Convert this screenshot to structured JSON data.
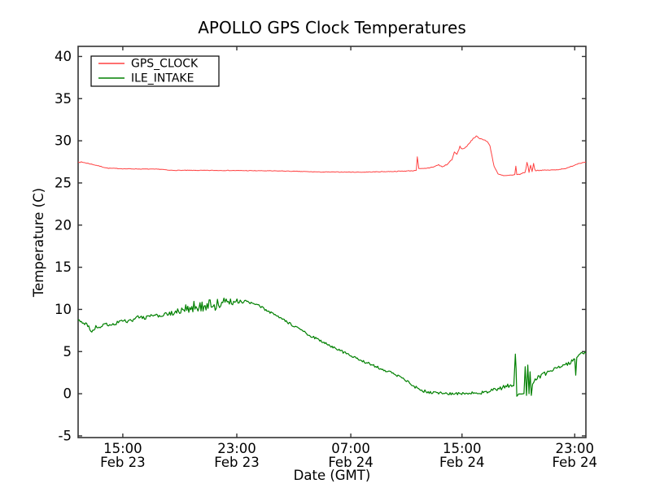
{
  "figure": {
    "title": "APOLLO GPS Clock Temperatures",
    "xlabel": "Date (GMT)",
    "ylabel": "Temperature (C)"
  },
  "chart_data": {
    "type": "line",
    "title": "APOLLO GPS Clock Temperatures",
    "xlabel": "Date (GMT)",
    "ylabel": "Temperature (C)",
    "grid": false,
    "ylim": [
      -5.2,
      41.2
    ],
    "yticks": [
      40,
      35,
      30,
      25,
      20,
      15,
      10,
      5,
      0,
      -5
    ],
    "xticks": [
      {
        "f": 0.088,
        "time": "15:00",
        "date": "Feb 23"
      },
      {
        "f": 0.3125,
        "time": "23:00",
        "date": "Feb 23"
      },
      {
        "f": 0.537,
        "time": "07:00",
        "date": "Feb 24"
      },
      {
        "f": 0.756,
        "time": "15:00",
        "date": "Feb 24"
      },
      {
        "f": 0.978,
        "time": "23:00",
        "date": "Feb 24"
      }
    ],
    "legend": {
      "position": "upper-left",
      "entries": [
        {
          "label": "GPS_CLOCK",
          "color": "#ff4040"
        },
        {
          "label": "ILE_INTAKE",
          "color": "#008000"
        }
      ]
    },
    "series": [
      {
        "name": "GPS_CLOCK",
        "color": "#ff4040",
        "width": 1.0,
        "points_format": [
          "x_fraction_of_axis",
          "temperature_C",
          "noise_amplitude_C"
        ],
        "points": [
          [
            0.0,
            27.5,
            0.06
          ],
          [
            0.012,
            27.42,
            0.05
          ],
          [
            0.032,
            27.15,
            0.04
          ],
          [
            0.058,
            26.75,
            0.03
          ],
          [
            0.095,
            26.68,
            0.03
          ],
          [
            0.165,
            26.62,
            0.03
          ],
          [
            0.178,
            26.5,
            0.03
          ],
          [
            0.3,
            26.48,
            0.03
          ],
          [
            0.4,
            26.42,
            0.03
          ],
          [
            0.475,
            26.3,
            0.03
          ],
          [
            0.56,
            26.28,
            0.03
          ],
          [
            0.63,
            26.38,
            0.04
          ],
          [
            0.66,
            26.45,
            0.04
          ],
          [
            0.666,
            26.5,
            0.0
          ],
          [
            0.668,
            28.1,
            0.0
          ],
          [
            0.671,
            26.7,
            0.0
          ],
          [
            0.685,
            26.7,
            0.06
          ],
          [
            0.702,
            26.95,
            0.07
          ],
          [
            0.71,
            27.15,
            0.07
          ],
          [
            0.717,
            26.9,
            0.07
          ],
          [
            0.728,
            27.25,
            0.08
          ],
          [
            0.736,
            27.8,
            0.09
          ],
          [
            0.741,
            28.6,
            0.09
          ],
          [
            0.746,
            28.4,
            0.08
          ],
          [
            0.752,
            29.3,
            0.08
          ],
          [
            0.757,
            29.0,
            0.08
          ],
          [
            0.763,
            29.25,
            0.08
          ],
          [
            0.77,
            29.6,
            0.08
          ],
          [
            0.778,
            30.3,
            0.07
          ],
          [
            0.784,
            30.55,
            0.07
          ],
          [
            0.791,
            30.3,
            0.06
          ],
          [
            0.799,
            30.1,
            0.06
          ],
          [
            0.806,
            29.9,
            0.05
          ],
          [
            0.811,
            29.4,
            0.0
          ],
          [
            0.819,
            27.0,
            0.04
          ],
          [
            0.827,
            26.05,
            0.05
          ],
          [
            0.838,
            25.85,
            0.05
          ],
          [
            0.855,
            25.9,
            0.06
          ],
          [
            0.86,
            26.0,
            0.0
          ],
          [
            0.862,
            27.0,
            0.0
          ],
          [
            0.864,
            26.0,
            0.0
          ],
          [
            0.872,
            26.05,
            0.06
          ],
          [
            0.88,
            26.3,
            0.1
          ],
          [
            0.884,
            27.3,
            0.35
          ],
          [
            0.888,
            26.4,
            0.45
          ],
          [
            0.891,
            27.5,
            0.5
          ],
          [
            0.894,
            26.5,
            0.4
          ],
          [
            0.897,
            27.1,
            0.25
          ],
          [
            0.901,
            26.5,
            0.08
          ],
          [
            0.912,
            26.5,
            0.04
          ],
          [
            0.94,
            26.55,
            0.04
          ],
          [
            0.963,
            26.75,
            0.04
          ],
          [
            0.985,
            27.3,
            0.04
          ],
          [
            1.0,
            27.5,
            0.04
          ]
        ]
      },
      {
        "name": "ILE_INTAKE",
        "color": "#008000",
        "width": 1.2,
        "points_format": [
          "x_fraction_of_axis",
          "temperature_C",
          "noise_amplitude_C"
        ],
        "points": [
          [
            0.0,
            8.7,
            0.25
          ],
          [
            0.015,
            8.3,
            0.25
          ],
          [
            0.027,
            7.4,
            0.2
          ],
          [
            0.035,
            7.9,
            0.2
          ],
          [
            0.06,
            8.2,
            0.25
          ],
          [
            0.09,
            8.6,
            0.25
          ],
          [
            0.12,
            9.0,
            0.3
          ],
          [
            0.15,
            9.2,
            0.25
          ],
          [
            0.17,
            9.35,
            0.25
          ],
          [
            0.19,
            9.6,
            0.3
          ],
          [
            0.21,
            10.0,
            0.5
          ],
          [
            0.23,
            10.4,
            0.7
          ],
          [
            0.25,
            10.5,
            0.75
          ],
          [
            0.27,
            10.6,
            0.75
          ],
          [
            0.285,
            10.8,
            0.6
          ],
          [
            0.3,
            10.9,
            0.45
          ],
          [
            0.315,
            11.0,
            0.3
          ],
          [
            0.33,
            10.9,
            0.2
          ],
          [
            0.345,
            10.7,
            0.15
          ],
          [
            0.36,
            10.3,
            0.15
          ],
          [
            0.38,
            9.6,
            0.15
          ],
          [
            0.4,
            8.9,
            0.15
          ],
          [
            0.42,
            8.2,
            0.15
          ],
          [
            0.44,
            7.5,
            0.15
          ],
          [
            0.46,
            6.8,
            0.15
          ],
          [
            0.48,
            6.2,
            0.15
          ],
          [
            0.5,
            5.6,
            0.15
          ],
          [
            0.52,
            5.0,
            0.15
          ],
          [
            0.54,
            4.4,
            0.15
          ],
          [
            0.56,
            3.9,
            0.15
          ],
          [
            0.58,
            3.4,
            0.15
          ],
          [
            0.6,
            2.9,
            0.15
          ],
          [
            0.62,
            2.4,
            0.15
          ],
          [
            0.64,
            1.8,
            0.15
          ],
          [
            0.655,
            1.2,
            0.15
          ],
          [
            0.67,
            0.5,
            0.2
          ],
          [
            0.685,
            0.25,
            0.2
          ],
          [
            0.7,
            0.15,
            0.15
          ],
          [
            0.72,
            0.05,
            0.15
          ],
          [
            0.745,
            0.0,
            0.15
          ],
          [
            0.77,
            0.05,
            0.15
          ],
          [
            0.79,
            0.1,
            0.2
          ],
          [
            0.81,
            0.3,
            0.2
          ],
          [
            0.825,
            0.5,
            0.25
          ],
          [
            0.84,
            0.8,
            0.3
          ],
          [
            0.852,
            1.0,
            0.3
          ],
          [
            0.858,
            0.9,
            0.2
          ],
          [
            0.861,
            4.7,
            0.0
          ],
          [
            0.8625,
            3.0,
            0.0
          ],
          [
            0.864,
            -0.3,
            0.0
          ],
          [
            0.868,
            0.0,
            0.1
          ],
          [
            0.878,
            0.0,
            0.1
          ],
          [
            0.8805,
            3.2,
            0.0
          ],
          [
            0.883,
            -0.2,
            0.0
          ],
          [
            0.8855,
            3.4,
            0.0
          ],
          [
            0.888,
            0.0,
            0.0
          ],
          [
            0.89,
            2.6,
            0.0
          ],
          [
            0.8925,
            -0.2,
            0.0
          ],
          [
            0.895,
            1.2,
            0.3
          ],
          [
            0.9,
            1.8,
            0.25
          ],
          [
            0.91,
            2.1,
            0.25
          ],
          [
            0.925,
            2.5,
            0.25
          ],
          [
            0.94,
            2.9,
            0.25
          ],
          [
            0.955,
            3.3,
            0.25
          ],
          [
            0.97,
            3.8,
            0.25
          ],
          [
            0.978,
            4.1,
            0.2
          ],
          [
            0.98,
            2.2,
            0.0
          ],
          [
            0.982,
            4.3,
            0.2
          ],
          [
            0.99,
            4.6,
            0.25
          ],
          [
            1.0,
            5.0,
            0.3
          ]
        ]
      }
    ]
  }
}
